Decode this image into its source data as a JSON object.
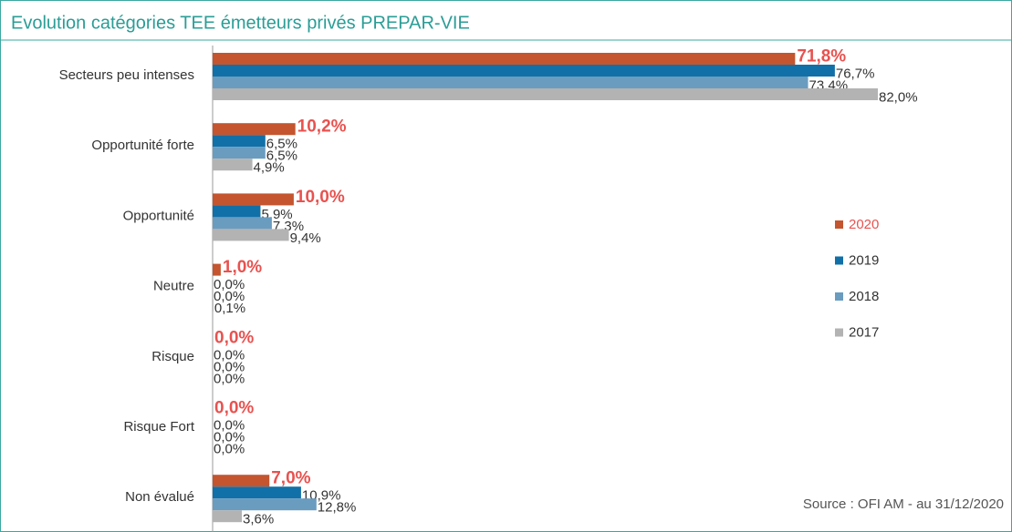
{
  "chart_data": {
    "type": "bar",
    "orientation": "horizontal",
    "title": "Evolution catégories TEE émetteurs privés PREPAR-VIE",
    "source": "Source : OFI AM - au 31/12/2020",
    "categories": [
      "Secteurs peu intenses",
      "Opportunité forte",
      "Opportunité",
      "Neutre",
      "Risque",
      "Risque Fort",
      "Non évalué"
    ],
    "series": [
      {
        "name": "2020",
        "color": "#c4552f",
        "label_color": "#e8524f",
        "values": [
          71.8,
          10.2,
          10.0,
          1.0,
          0.0,
          0.0,
          7.0
        ],
        "value_labels": [
          "71,8%",
          "10,2%",
          "10,0%",
          "1,0%",
          "0,0%",
          "0,0%",
          "7,0%"
        ]
      },
      {
        "name": "2019",
        "color": "#1170a8",
        "values": [
          76.7,
          6.5,
          5.9,
          0.0,
          0.0,
          0.0,
          10.9
        ],
        "value_labels": [
          "76,7%",
          "6,5%",
          "5,9%",
          "0,0%",
          "0,0%",
          "0,0%",
          "10,9%"
        ]
      },
      {
        "name": "2018",
        "color": "#6a9cc0",
        "values": [
          73.4,
          6.5,
          7.3,
          0.0,
          0.0,
          0.0,
          12.8
        ],
        "value_labels": [
          "73,4%",
          "6,5%",
          "7,3%",
          "0,0%",
          "0,0%",
          "0,0%",
          "12,8%"
        ]
      },
      {
        "name": "2017",
        "color": "#b3b3b3",
        "values": [
          82.0,
          4.9,
          9.4,
          0.1,
          0.0,
          0.0,
          3.6
        ],
        "value_labels": [
          "82,0%",
          "4,9%",
          "9,4%",
          "0,1%",
          "0,0%",
          "0,0%",
          "3,6%"
        ]
      }
    ]
  }
}
